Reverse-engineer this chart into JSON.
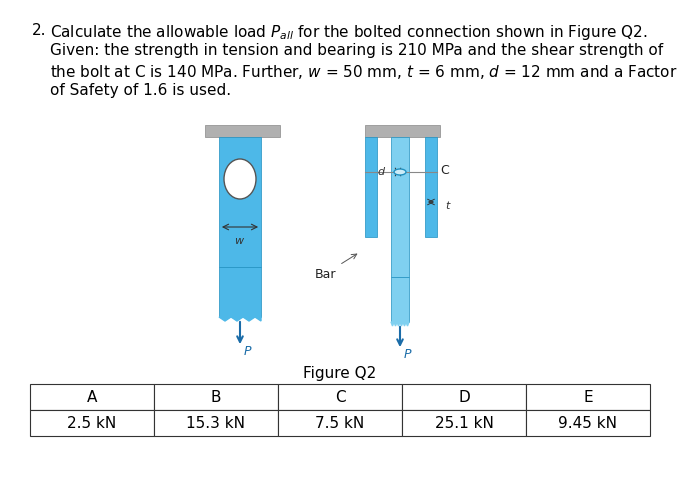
{
  "title_number": "2.",
  "problem_text_lines": [
    "Calculate the allowable load $P_{all}$ for the bolted connection shown in Figure Q2.",
    "Given: the strength in tension and bearing is 210 MPa and the shear strength of",
    "the bolt at C is 140 MPa. Further, $w$ = 50 mm, $t$ = 6 mm, $d$ = 12 mm and a Factor",
    "of Safety of 1.6 is used."
  ],
  "figure_caption": "Figure Q2",
  "table_headers": [
    "A",
    "B",
    "C",
    "D",
    "E"
  ],
  "table_values": [
    "2.5 kN",
    "15.3 kN",
    "7.5 kN",
    "25.1 kN",
    "9.45 kN"
  ],
  "bar_color_main": "#4db8e8",
  "bar_color_dark": "#2a8abf",
  "bar_color_light": "#7fd0f0",
  "bolt_color": "#5bc0eb",
  "bg_color": "#ffffff",
  "text_color": "#000000"
}
